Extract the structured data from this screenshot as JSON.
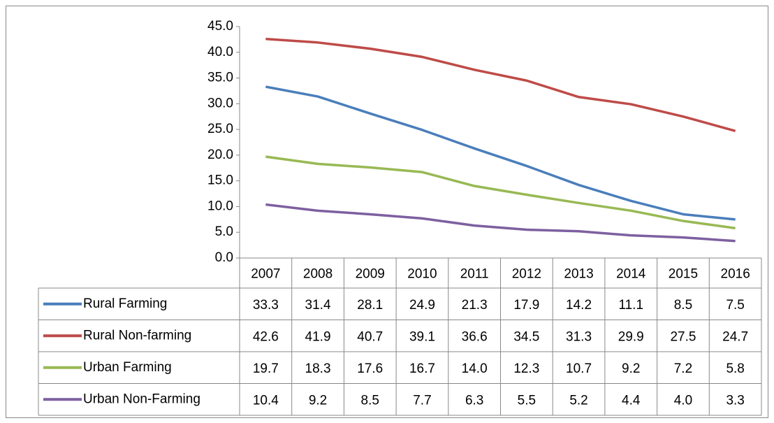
{
  "chart_data": {
    "type": "line",
    "categories": [
      "2007",
      "2008",
      "2009",
      "2010",
      "2011",
      "2012",
      "2013",
      "2014",
      "2015",
      "2016"
    ],
    "ylim": [
      0,
      45
    ],
    "yticks": [
      {
        "value": 0,
        "label": "0.0"
      },
      {
        "value": 5,
        "label": "5.0"
      },
      {
        "value": 10,
        "label": "10.0"
      },
      {
        "value": 15,
        "label": "15.0"
      },
      {
        "value": 20,
        "label": "20.0"
      },
      {
        "value": 25,
        "label": "25.0"
      },
      {
        "value": 30,
        "label": "30.0"
      },
      {
        "value": 35,
        "label": "35.0"
      },
      {
        "value": 40,
        "label": "40.0"
      },
      {
        "value": 45,
        "label": "45.0"
      }
    ],
    "series": [
      {
        "name": "Rural Farming",
        "color": "#4a7ebb",
        "values": [
          33.3,
          31.4,
          28.1,
          24.9,
          21.3,
          17.9,
          14.2,
          11.1,
          8.5,
          7.5
        ],
        "value_labels": [
          "33.3",
          "31.4",
          "28.1",
          "24.9",
          "21.3",
          "17.9",
          "14.2",
          "11.1",
          "8.5",
          "7.5"
        ]
      },
      {
        "name": "Rural Non-farming",
        "color": "#be4b48",
        "values": [
          42.6,
          41.9,
          40.7,
          39.1,
          36.6,
          34.5,
          31.3,
          29.9,
          27.5,
          24.7
        ],
        "value_labels": [
          "42.6",
          "41.9",
          "40.7",
          "39.1",
          "36.6",
          "34.5",
          "31.3",
          "29.9",
          "27.5",
          "24.7"
        ]
      },
      {
        "name": "Urban Farming",
        "color": "#98b954",
        "values": [
          19.7,
          18.3,
          17.6,
          16.7,
          14.0,
          12.3,
          10.7,
          9.2,
          7.2,
          5.8
        ],
        "value_labels": [
          "19.7",
          "18.3",
          "17.6",
          "16.7",
          "14.0",
          "12.3",
          "10.7",
          "9.2",
          "7.2",
          "5.8"
        ]
      },
      {
        "name": "Urban Non-Farming",
        "color": "#7d60a0",
        "values": [
          10.4,
          9.2,
          8.5,
          7.7,
          6.3,
          5.5,
          5.2,
          4.4,
          4.0,
          3.3
        ],
        "value_labels": [
          "10.4",
          "9.2",
          "8.5",
          "7.7",
          "6.3",
          "5.5",
          "5.2",
          "4.4",
          "4.0",
          "3.3"
        ]
      }
    ]
  }
}
